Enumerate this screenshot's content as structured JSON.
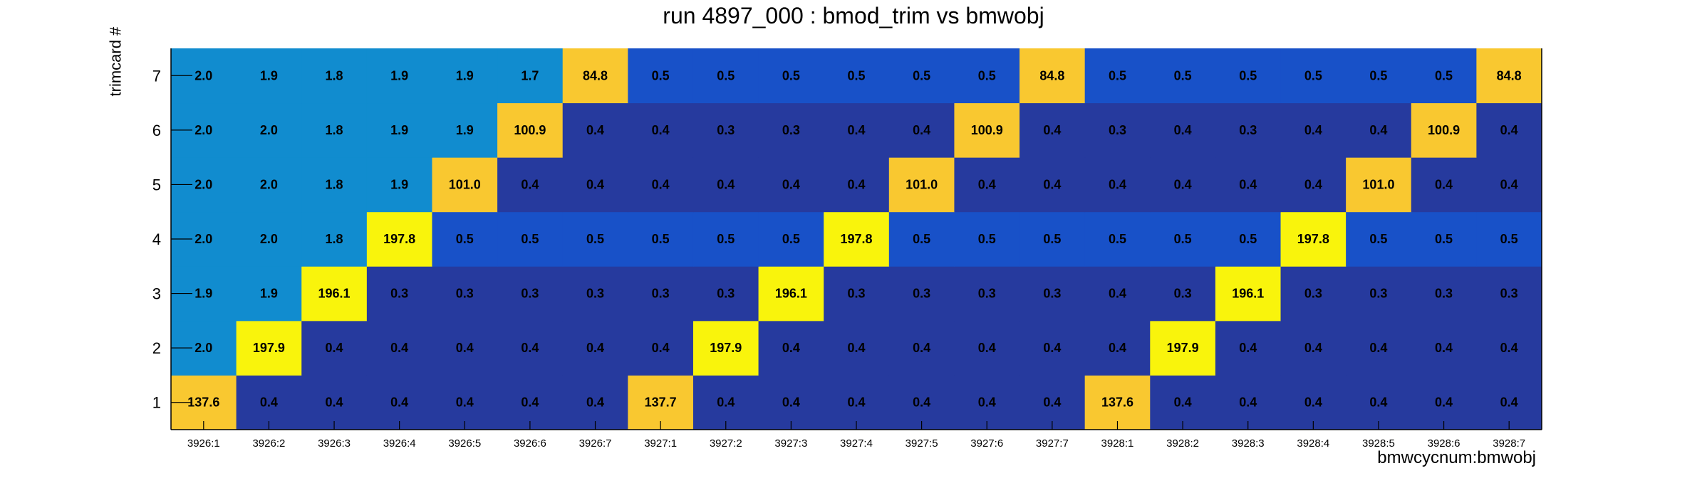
{
  "title": "run 4897_000 : bmod_trim vs bmwobj",
  "chart_data": {
    "type": "heatmap",
    "title": "run 4897_000 : bmod_trim vs bmwobj",
    "xlabel": "bmwcycnum:bmwobj",
    "ylabel": "trimcard #",
    "x_categories": [
      "3926:1",
      "3926:2",
      "3926:3",
      "3926:4",
      "3926:5",
      "3926:6",
      "3926:7",
      "3927:1",
      "3927:2",
      "3927:3",
      "3927:4",
      "3927:5",
      "3927:6",
      "3927:7",
      "3928:1",
      "3928:2",
      "3928:3",
      "3928:4",
      "3928:5",
      "3928:6",
      "3928:7"
    ],
    "y_categories": [
      "1",
      "2",
      "3",
      "4",
      "5",
      "6",
      "7"
    ],
    "values": [
      [
        137.6,
        0.4,
        0.4,
        0.4,
        0.4,
        0.4,
        0.4,
        137.7,
        0.4,
        0.4,
        0.4,
        0.4,
        0.4,
        0.4,
        137.6,
        0.4,
        0.4,
        0.4,
        0.4,
        0.4,
        0.4
      ],
      [
        2.0,
        197.9,
        0.4,
        0.4,
        0.4,
        0.4,
        0.4,
        0.4,
        197.9,
        0.4,
        0.4,
        0.4,
        0.4,
        0.4,
        0.4,
        197.9,
        0.4,
        0.4,
        0.4,
        0.4,
        0.4
      ],
      [
        1.9,
        1.9,
        196.1,
        0.3,
        0.3,
        0.3,
        0.3,
        0.3,
        0.3,
        196.1,
        0.3,
        0.3,
        0.3,
        0.3,
        0.4,
        0.3,
        196.1,
        0.3,
        0.3,
        0.3,
        0.3
      ],
      [
        2.0,
        2.0,
        1.8,
        197.8,
        0.5,
        0.5,
        0.5,
        0.5,
        0.5,
        0.5,
        197.8,
        0.5,
        0.5,
        0.5,
        0.5,
        0.5,
        0.5,
        197.8,
        0.5,
        0.5,
        0.5
      ],
      [
        2.0,
        2.0,
        1.8,
        1.9,
        101.0,
        0.4,
        0.4,
        0.4,
        0.4,
        0.4,
        0.4,
        101.0,
        0.4,
        0.4,
        0.4,
        0.4,
        0.4,
        0.4,
        101.0,
        0.4,
        0.4
      ],
      [
        2.0,
        2.0,
        1.8,
        1.9,
        1.9,
        100.9,
        0.4,
        0.4,
        0.3,
        0.3,
        0.4,
        0.4,
        100.9,
        0.4,
        0.3,
        0.4,
        0.3,
        0.4,
        0.4,
        100.9,
        0.4
      ],
      [
        2.0,
        1.9,
        1.8,
        1.9,
        1.9,
        1.7,
        84.8,
        0.5,
        0.5,
        0.5,
        0.5,
        0.5,
        0.5,
        84.8,
        0.5,
        0.5,
        0.5,
        0.5,
        0.5,
        0.5,
        84.8
      ]
    ],
    "palette": {
      "low": "#263a9e",
      "mid_low": "#1851c8",
      "mid": "#118ccf",
      "high_mid": "#f9c830",
      "high": "#f9f40c"
    },
    "grid": false,
    "legend": "none"
  }
}
